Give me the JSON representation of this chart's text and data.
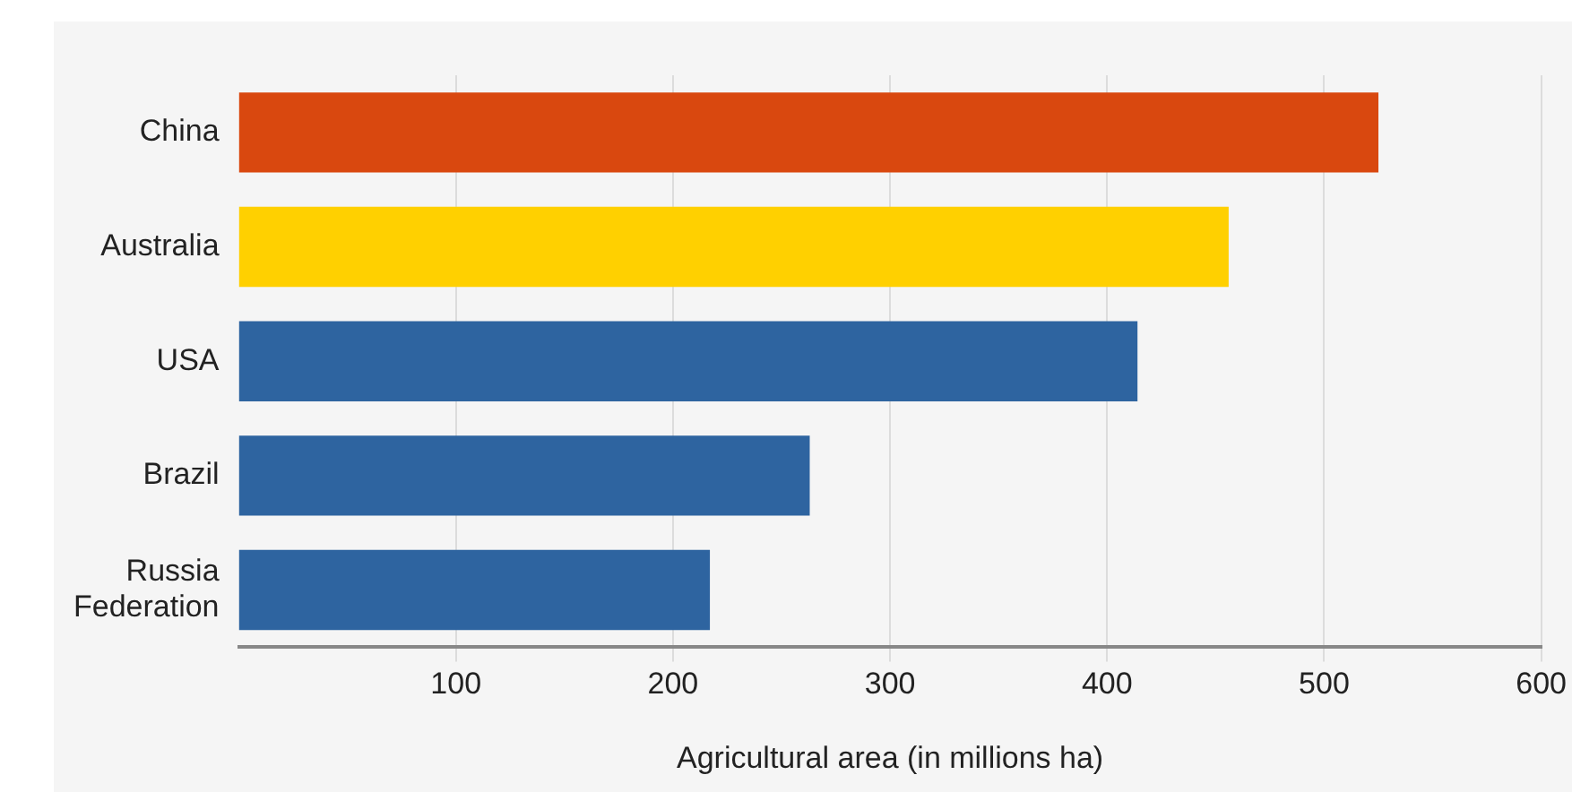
{
  "chart_data": {
    "type": "bar",
    "orientation": "horizontal",
    "xlabel": "Agricultural area (in millions ha)",
    "categories": [
      "China",
      "Australia",
      "USA",
      "Brazil",
      "Russia Federation"
    ],
    "values": [
      525,
      456,
      414,
      263,
      217
    ],
    "colors": [
      "#d9480f",
      "#ffd000",
      "#2e64a0",
      "#2e64a0",
      "#2e64a0"
    ],
    "xlim": [
      0,
      600
    ],
    "xticks": [
      100,
      200,
      300,
      400,
      500,
      600
    ],
    "grid": "x"
  }
}
